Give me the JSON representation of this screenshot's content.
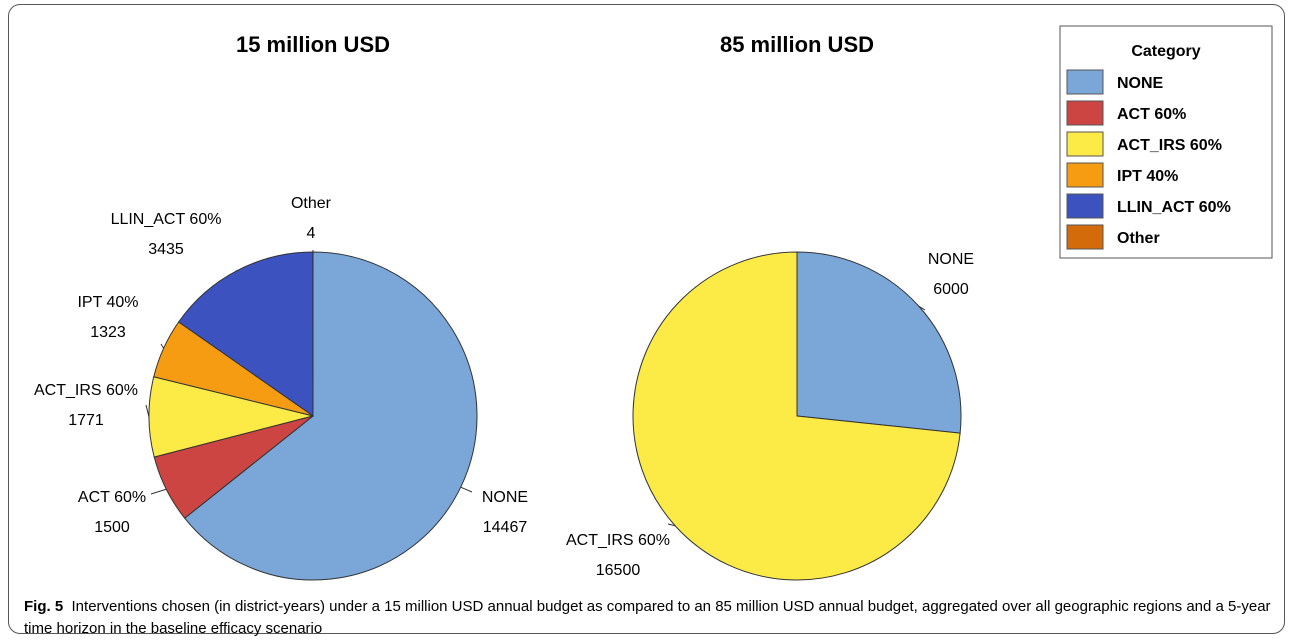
{
  "chart_data": [
    {
      "type": "pie",
      "title": "15 million USD",
      "slices": [
        {
          "label": "NONE",
          "value": 14467,
          "color": "#7BA6D8"
        },
        {
          "label": "ACT 60%",
          "value": 1500,
          "color": "#CC4543"
        },
        {
          "label": "ACT_IRS 60%",
          "value": 1771,
          "color": "#FCEB47"
        },
        {
          "label": "IPT 40%",
          "value": 1323,
          "color": "#F59C12"
        },
        {
          "label": "LLIN_ACT 60%",
          "value": 3435,
          "color": "#3C52BE"
        },
        {
          "label": "Other",
          "value": 4,
          "color": "#D46B0A"
        }
      ]
    },
    {
      "type": "pie",
      "title": "85 million USD",
      "slices": [
        {
          "label": "NONE",
          "value": 6000,
          "color": "#7BA6D8"
        },
        {
          "label": "ACT_IRS 60%",
          "value": 16500,
          "color": "#FCEB47"
        }
      ]
    }
  ],
  "legend": {
    "title": "Category",
    "items": [
      {
        "label": "NONE",
        "color": "#7BA6D8"
      },
      {
        "label": "ACT 60%",
        "color": "#CC4543"
      },
      {
        "label": "ACT_IRS 60%",
        "color": "#FCEB47"
      },
      {
        "label": "IPT 40%",
        "color": "#F59C12"
      },
      {
        "label": "LLIN_ACT 60%",
        "color": "#3C52BE"
      },
      {
        "label": "Other",
        "color": "#D46B0A"
      }
    ]
  },
  "caption": {
    "figure_label": "Fig. 5",
    "text": "Interventions chosen (in district-years) under a 15 million USD annual budget as compared to an 85 million USD annual budget, aggregated over all geographic regions and a 5-year time horizon in the baseline efficacy scenario"
  }
}
